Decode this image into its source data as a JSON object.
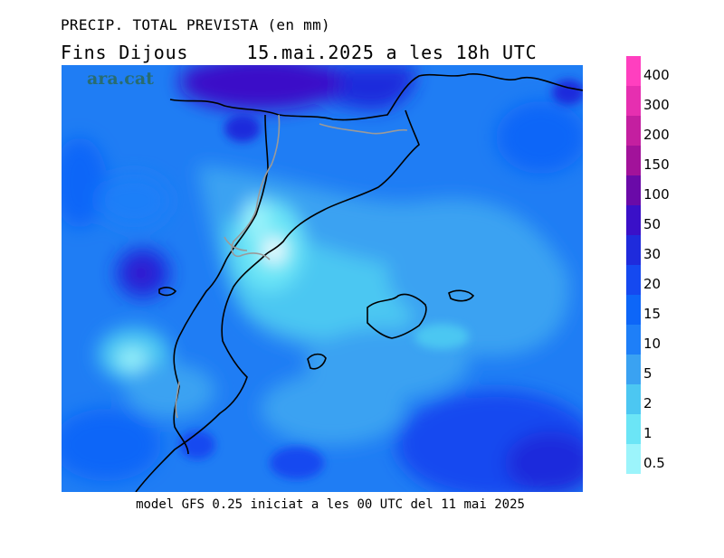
{
  "title_line1": "PRECIP. TOTAL PREVISTA (en mm)",
  "title_line2": "Fins Dijous     15.mai.2025 a les 18h UTC",
  "logo_text": "ara.cat",
  "caption": "model GFS 0.25 iniciat a les 00 UTC del 11 mai 2025",
  "legend": {
    "levels": [
      {
        "label": "400",
        "color": "#ff3fbf"
      },
      {
        "label": "300",
        "color": "#e62fb0"
      },
      {
        "label": "200",
        "color": "#c41fa0"
      },
      {
        "label": "150",
        "color": "#a2129a"
      },
      {
        "label": "100",
        "color": "#6a0aa8"
      },
      {
        "label": "50",
        "color": "#3a10c8"
      },
      {
        "label": "30",
        "color": "#1f2bdc"
      },
      {
        "label": "20",
        "color": "#1549f0"
      },
      {
        "label": "15",
        "color": "#0d66f8"
      },
      {
        "label": "10",
        "color": "#1e7ff8"
      },
      {
        "label": "5",
        "color": "#3aa2f2"
      },
      {
        "label": "2",
        "color": "#4cc7f2"
      },
      {
        "label": "1",
        "color": "#6be5f6"
      },
      {
        "label": "0.5",
        "color": "#9cf4fb"
      }
    ]
  },
  "colors": {
    "background_water": "#1f7df4",
    "coastline": "#000000",
    "border": "#9a9a9a"
  }
}
